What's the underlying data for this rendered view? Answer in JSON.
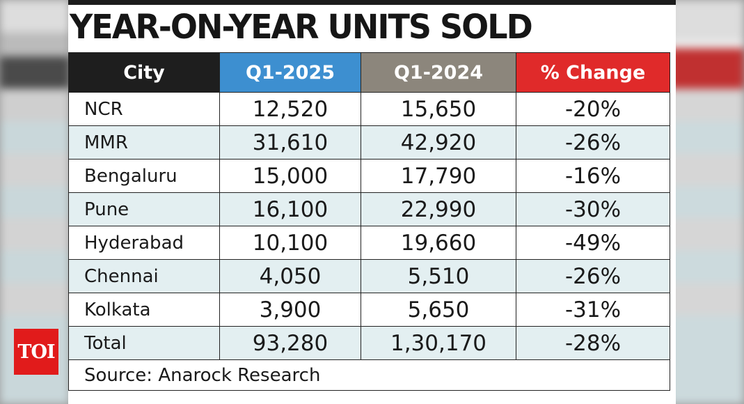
{
  "title": "YEAR-ON-YEAR UNITS SOLD",
  "logo": "TOI",
  "colors": {
    "city_header": "#1e1e1e",
    "q1_2025_header": "#3d8fd0",
    "q1_2024_header": "#8c867c",
    "change_header": "#e02a2a",
    "row_tint": "#e3eff1",
    "logo": "#e11b1b"
  },
  "chart_data": {
    "type": "table",
    "title": "YEAR-ON-YEAR UNITS SOLD",
    "columns": [
      "City",
      "Q1-2025",
      "Q1-2024",
      "% Change"
    ],
    "rows": [
      [
        "NCR",
        "12,520",
        "15,650",
        "-20%"
      ],
      [
        "MMR",
        "31,610",
        "42,920",
        "-26%"
      ],
      [
        "Bengaluru",
        "15,000",
        "17,790",
        "-16%"
      ],
      [
        "Pune",
        "16,100",
        "22,990",
        "-30%"
      ],
      [
        "Hyderabad",
        "10,100",
        "19,660",
        "-49%"
      ],
      [
        "Chennai",
        "4,050",
        "5,510",
        "-26%"
      ],
      [
        "Kolkata",
        "3,900",
        "5,650",
        "-31%"
      ],
      [
        "Total",
        "93,280",
        "1,30,170",
        "-28%"
      ]
    ],
    "source": "Source: Anarock Research"
  }
}
